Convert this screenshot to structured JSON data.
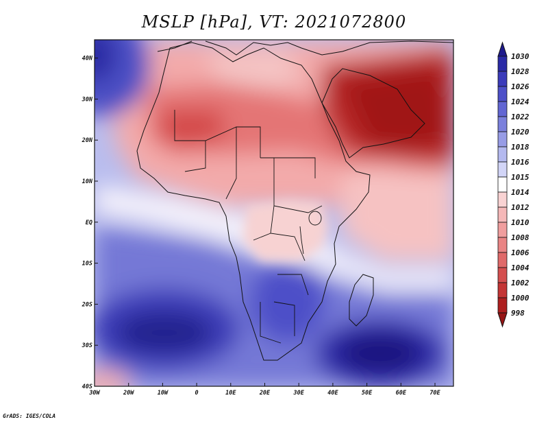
{
  "title": "MSLP [hPa], VT: 2021072800",
  "footer": "GrADS: IGES/COLA",
  "map": {
    "variable": "MSLP",
    "units": "hPa",
    "valid_time": "2021072800",
    "lon_range": [
      -30,
      75
    ],
    "lat_range": [
      -40,
      45
    ],
    "x_ticks": [
      "30W",
      "20W",
      "10W",
      "0",
      "10E",
      "20E",
      "30E",
      "40E",
      "50E",
      "60E",
      "70E"
    ],
    "y_ticks": [
      "40S",
      "30S",
      "20S",
      "10S",
      "EQ",
      "10N",
      "20N",
      "30N",
      "40N"
    ]
  },
  "colorbar": {
    "levels": [
      "1030",
      "1028",
      "1026",
      "1024",
      "1022",
      "1020",
      "1018",
      "1016",
      "1015",
      "1014",
      "1012",
      "1010",
      "1008",
      "1006",
      "1004",
      "1002",
      "1000",
      "998"
    ],
    "colors": [
      "#1e1a8c",
      "#2a2aa6",
      "#3b3bba",
      "#4d50c8",
      "#6266d3",
      "#7b80dc",
      "#979ce6",
      "#b4b9ef",
      "#d2d5f7",
      "#ffffff",
      "#f9d3d3",
      "#f5b8b8",
      "#f09e9e",
      "#e98484",
      "#e06a6a",
      "#d44f4f",
      "#c43535",
      "#ad1f1f",
      "#961515"
    ]
  }
}
